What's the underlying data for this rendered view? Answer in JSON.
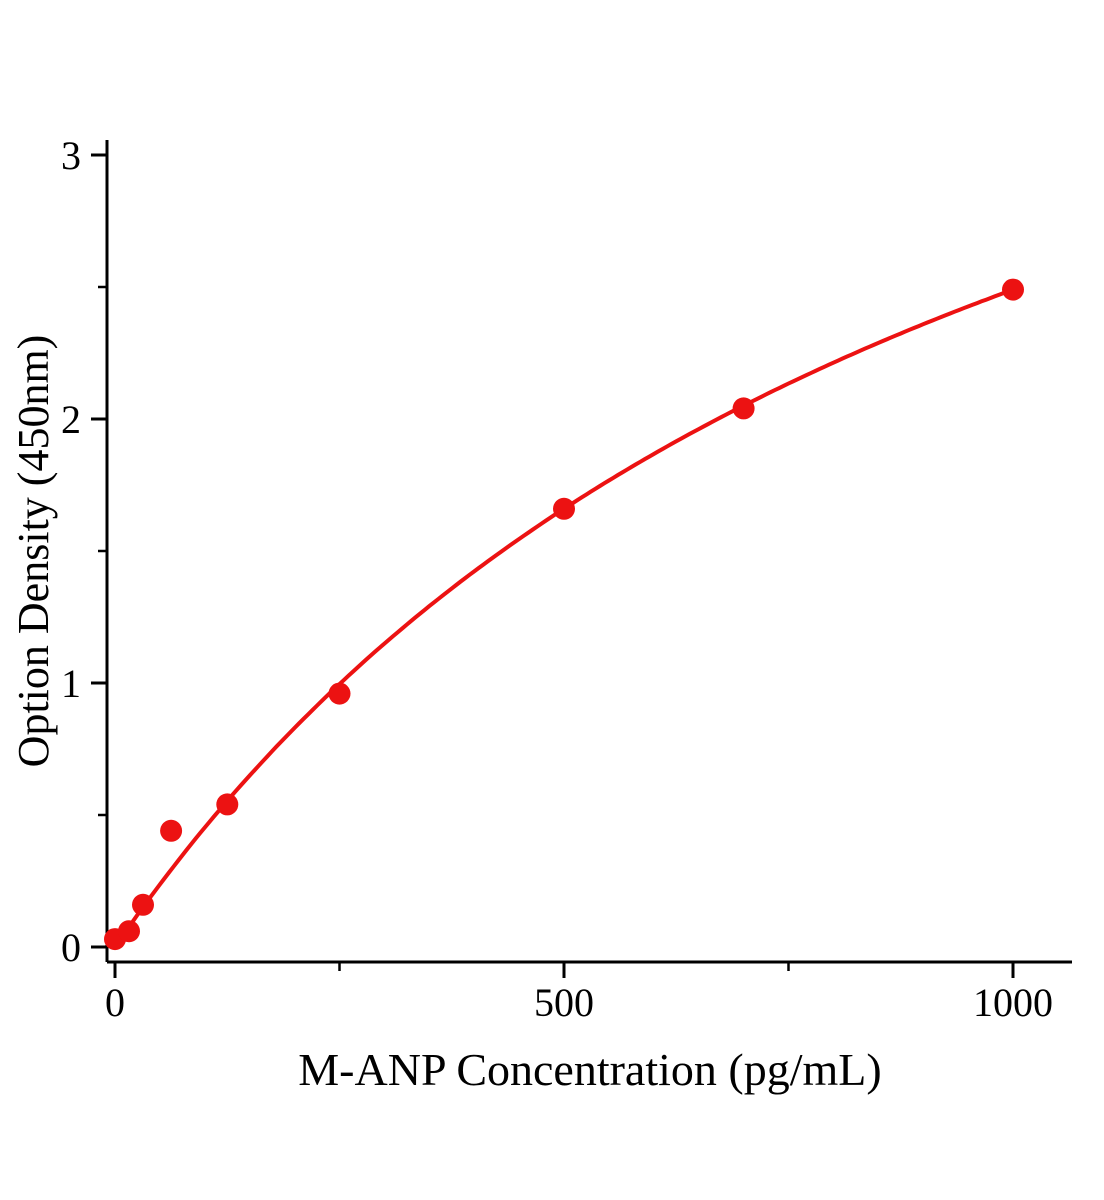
{
  "page": {
    "background": "#ffffff"
  },
  "chart_data": {
    "type": "scatter",
    "title": "",
    "xlabel": "M-ANP Concentration (pg/mL)",
    "ylabel": "Option Density (450nm)",
    "x": [
      0,
      15.6,
      31.2,
      62.5,
      125,
      250,
      500,
      700,
      1000
    ],
    "y": [
      0.03,
      0.06,
      0.16,
      0.44,
      0.54,
      0.96,
      1.66,
      2.04,
      2.49
    ],
    "xlim": [
      0,
      1060
    ],
    "ylim": [
      0,
      3
    ],
    "xticks": [
      0,
      500,
      1000
    ],
    "xtick_labels": [
      "0",
      "500",
      "1000"
    ],
    "yticks": [
      0,
      1,
      2,
      3
    ],
    "ytick_labels": [
      "0",
      "1",
      "2",
      "3"
    ],
    "x_minor_ticks": [
      250,
      750
    ],
    "y_minor_ticks": [
      0.5,
      1.5,
      2.5
    ],
    "grid": false,
    "legend_position": "none",
    "fit_curve": {
      "type": "saturation",
      "formula": "y = a*x/(b+x)",
      "a": 4.98,
      "b": 1000
    },
    "colors": {
      "curve": "#ec1212",
      "points": "#ec1212",
      "axis": "#000000"
    }
  }
}
